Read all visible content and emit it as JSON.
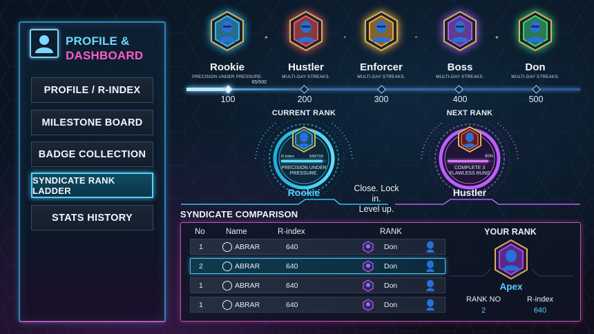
{
  "sidebar": {
    "title_line1": "PROFILE &",
    "title_line2": "DASHBOARD",
    "nav": [
      {
        "label": "PROFILE / R-INDEX",
        "active": false
      },
      {
        "label": "MILESTONE BOARD",
        "active": false
      },
      {
        "label": "BADGE COLLECTION",
        "active": false
      },
      {
        "label": "SYNDICATE RANK LADDER",
        "active": true
      },
      {
        "label": "STATS HISTORY",
        "active": false
      }
    ]
  },
  "ladder": {
    "progress_text": "65/500",
    "ranks": [
      {
        "name": "Rookie",
        "desc": "PRECISION UNDER PRESSURE.",
        "threshold": "100",
        "color": "#39c6ff"
      },
      {
        "name": "Hustler",
        "desc": "MULTI-DAY STREAKS.",
        "threshold": "200",
        "color": "#ff5a5a"
      },
      {
        "name": "Enforcer",
        "desc": "MULTI-DAY STREAKS.",
        "threshold": "300",
        "color": "#ffb13b"
      },
      {
        "name": "Boss",
        "desc": "MULTI-DAY STREAKS.",
        "threshold": "400",
        "color": "#b45cff"
      },
      {
        "name": "Don",
        "desc": "MULTI-DAY STREAKS.",
        "threshold": "500",
        "color": "#3ee37a"
      }
    ]
  },
  "current_rank": {
    "label": "CURRENT RANK",
    "rindex_label": "R-index",
    "rindex_value": "640/700",
    "desc_line1": "PRECISION UNDER",
    "desc_line2": "PRESSURE.",
    "name": "Rookie",
    "color": "#39c6ff"
  },
  "next_rank": {
    "label": "NEXT RANK",
    "percent": "90%",
    "desc_line1": "COMPLETE 3",
    "desc_line2": "FLAWLESS RUNS",
    "name": "Hustler",
    "color": "#c05cff"
  },
  "quote": {
    "line1": "Close. Lock in.",
    "line2": "Level up."
  },
  "comparison": {
    "title": "SYNDICATE COMPARISON",
    "headers": {
      "no": "No",
      "name": "Name",
      "rindex": "R-index",
      "rank": "RANK"
    },
    "rows": [
      {
        "no": "1",
        "name": "ABRAR",
        "rindex": "640",
        "rank": "Don",
        "highlight": false
      },
      {
        "no": "2",
        "name": "ABRAR",
        "rindex": "640",
        "rank": "Don",
        "highlight": true
      },
      {
        "no": "1",
        "name": "ABRAR",
        "rindex": "640",
        "rank": "Don",
        "highlight": false
      },
      {
        "no": "1",
        "name": "ABRAR",
        "rindex": "640",
        "rank": "Don",
        "highlight": false
      }
    ],
    "your_rank": {
      "title": "YOUR RANK",
      "name": "Apex",
      "rank_no_label": "RANK NO",
      "rank_no": "2",
      "rindex_label": "R-index",
      "rindex": "640"
    }
  }
}
